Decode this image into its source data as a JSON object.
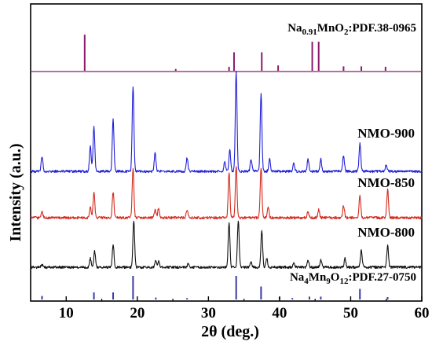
{
  "chart_data": {
    "type": "line",
    "xlabel": "2θ (deg.)",
    "ylabel": "Intensity (a.u.)",
    "xlim": [
      5,
      60
    ],
    "x_ticks": [
      "10",
      "20",
      "30",
      "40",
      "50",
      "60"
    ],
    "grid": false,
    "reference_top": {
      "label_parts": [
        "Na",
        "0.91",
        "MnO",
        "2",
        ":PDF.38-0965"
      ],
      "color": "#8b1a6b",
      "peaks": [
        {
          "x": 12.6,
          "h": 0.82
        },
        {
          "x": 25.4,
          "h": 0.04
        },
        {
          "x": 32.9,
          "h": 0.09
        },
        {
          "x": 33.6,
          "h": 0.42
        },
        {
          "x": 37.5,
          "h": 0.42
        },
        {
          "x": 39.8,
          "h": 0.12
        },
        {
          "x": 44.6,
          "h": 0.66
        },
        {
          "x": 45.5,
          "h": 0.66
        },
        {
          "x": 49.0,
          "h": 0.1
        },
        {
          "x": 51.5,
          "h": 0.1
        },
        {
          "x": 54.9,
          "h": 0.09
        }
      ]
    },
    "reference_bottom": {
      "label_parts": [
        "Na",
        "4",
        "Mn",
        "9",
        "O",
        "12",
        ":PDF.27-0750"
      ],
      "color": "#3a3aa8",
      "peaks": [
        {
          "x": 6.6,
          "h": 0.15
        },
        {
          "x": 13.9,
          "h": 0.3
        },
        {
          "x": 16.6,
          "h": 0.3
        },
        {
          "x": 19.4,
          "h": 1.0
        },
        {
          "x": 22.6,
          "h": 0.08
        },
        {
          "x": 27.0,
          "h": 0.06
        },
        {
          "x": 33.9,
          "h": 1.0
        },
        {
          "x": 37.4,
          "h": 0.55
        },
        {
          "x": 40.0,
          "h": 0.1
        },
        {
          "x": 41.8,
          "h": 0.06
        },
        {
          "x": 44.2,
          "h": 0.12
        },
        {
          "x": 45.8,
          "h": 0.12
        },
        {
          "x": 51.3,
          "h": 0.45
        },
        {
          "x": 55.2,
          "h": 0.1
        }
      ]
    },
    "series": [
      {
        "name": "NMO-900",
        "color": "#1f1fd6",
        "peaks": [
          {
            "x": 6.6,
            "h": 0.15
          },
          {
            "x": 13.4,
            "h": 0.25
          },
          {
            "x": 13.9,
            "h": 0.45
          },
          {
            "x": 16.6,
            "h": 0.52
          },
          {
            "x": 19.4,
            "h": 0.85
          },
          {
            "x": 22.5,
            "h": 0.18
          },
          {
            "x": 27.0,
            "h": 0.14
          },
          {
            "x": 32.3,
            "h": 0.1
          },
          {
            "x": 33.0,
            "h": 0.22
          },
          {
            "x": 33.9,
            "h": 1.0
          },
          {
            "x": 36.0,
            "h": 0.12
          },
          {
            "x": 37.4,
            "h": 0.78
          },
          {
            "x": 38.6,
            "h": 0.12
          },
          {
            "x": 42.0,
            "h": 0.08
          },
          {
            "x": 44.0,
            "h": 0.12
          },
          {
            "x": 45.8,
            "h": 0.12
          },
          {
            "x": 49.0,
            "h": 0.16
          },
          {
            "x": 51.3,
            "h": 0.28
          },
          {
            "x": 55.0,
            "h": 0.06
          }
        ]
      },
      {
        "name": "NMO-850",
        "color": "#d42a1e",
        "peaks": [
          {
            "x": 6.6,
            "h": 0.06
          },
          {
            "x": 13.4,
            "h": 0.1
          },
          {
            "x": 13.9,
            "h": 0.25
          },
          {
            "x": 16.6,
            "h": 0.26
          },
          {
            "x": 19.4,
            "h": 0.5
          },
          {
            "x": 22.5,
            "h": 0.08
          },
          {
            "x": 23.0,
            "h": 0.1
          },
          {
            "x": 27.0,
            "h": 0.08
          },
          {
            "x": 32.9,
            "h": 0.45
          },
          {
            "x": 33.9,
            "h": 0.52
          },
          {
            "x": 37.4,
            "h": 0.5
          },
          {
            "x": 38.4,
            "h": 0.1
          },
          {
            "x": 44.0,
            "h": 0.06
          },
          {
            "x": 45.5,
            "h": 0.08
          },
          {
            "x": 49.0,
            "h": 0.12
          },
          {
            "x": 51.3,
            "h": 0.22
          },
          {
            "x": 55.2,
            "h": 0.28
          }
        ]
      },
      {
        "name": "NMO-800",
        "color": "#111111",
        "peaks": [
          {
            "x": 6.6,
            "h": 0.04
          },
          {
            "x": 13.4,
            "h": 0.12
          },
          {
            "x": 14.0,
            "h": 0.22
          },
          {
            "x": 16.6,
            "h": 0.32
          },
          {
            "x": 19.5,
            "h": 0.65
          },
          {
            "x": 22.6,
            "h": 0.1
          },
          {
            "x": 23.0,
            "h": 0.08
          },
          {
            "x": 27.2,
            "h": 0.06
          },
          {
            "x": 32.9,
            "h": 0.62
          },
          {
            "x": 34.2,
            "h": 0.65
          },
          {
            "x": 36.0,
            "h": 0.08
          },
          {
            "x": 37.5,
            "h": 0.52
          },
          {
            "x": 38.2,
            "h": 0.12
          },
          {
            "x": 42.0,
            "h": 0.05
          },
          {
            "x": 44.0,
            "h": 0.1
          },
          {
            "x": 45.8,
            "h": 0.1
          },
          {
            "x": 49.2,
            "h": 0.12
          },
          {
            "x": 51.5,
            "h": 0.24
          },
          {
            "x": 55.2,
            "h": 0.3
          }
        ]
      }
    ]
  }
}
